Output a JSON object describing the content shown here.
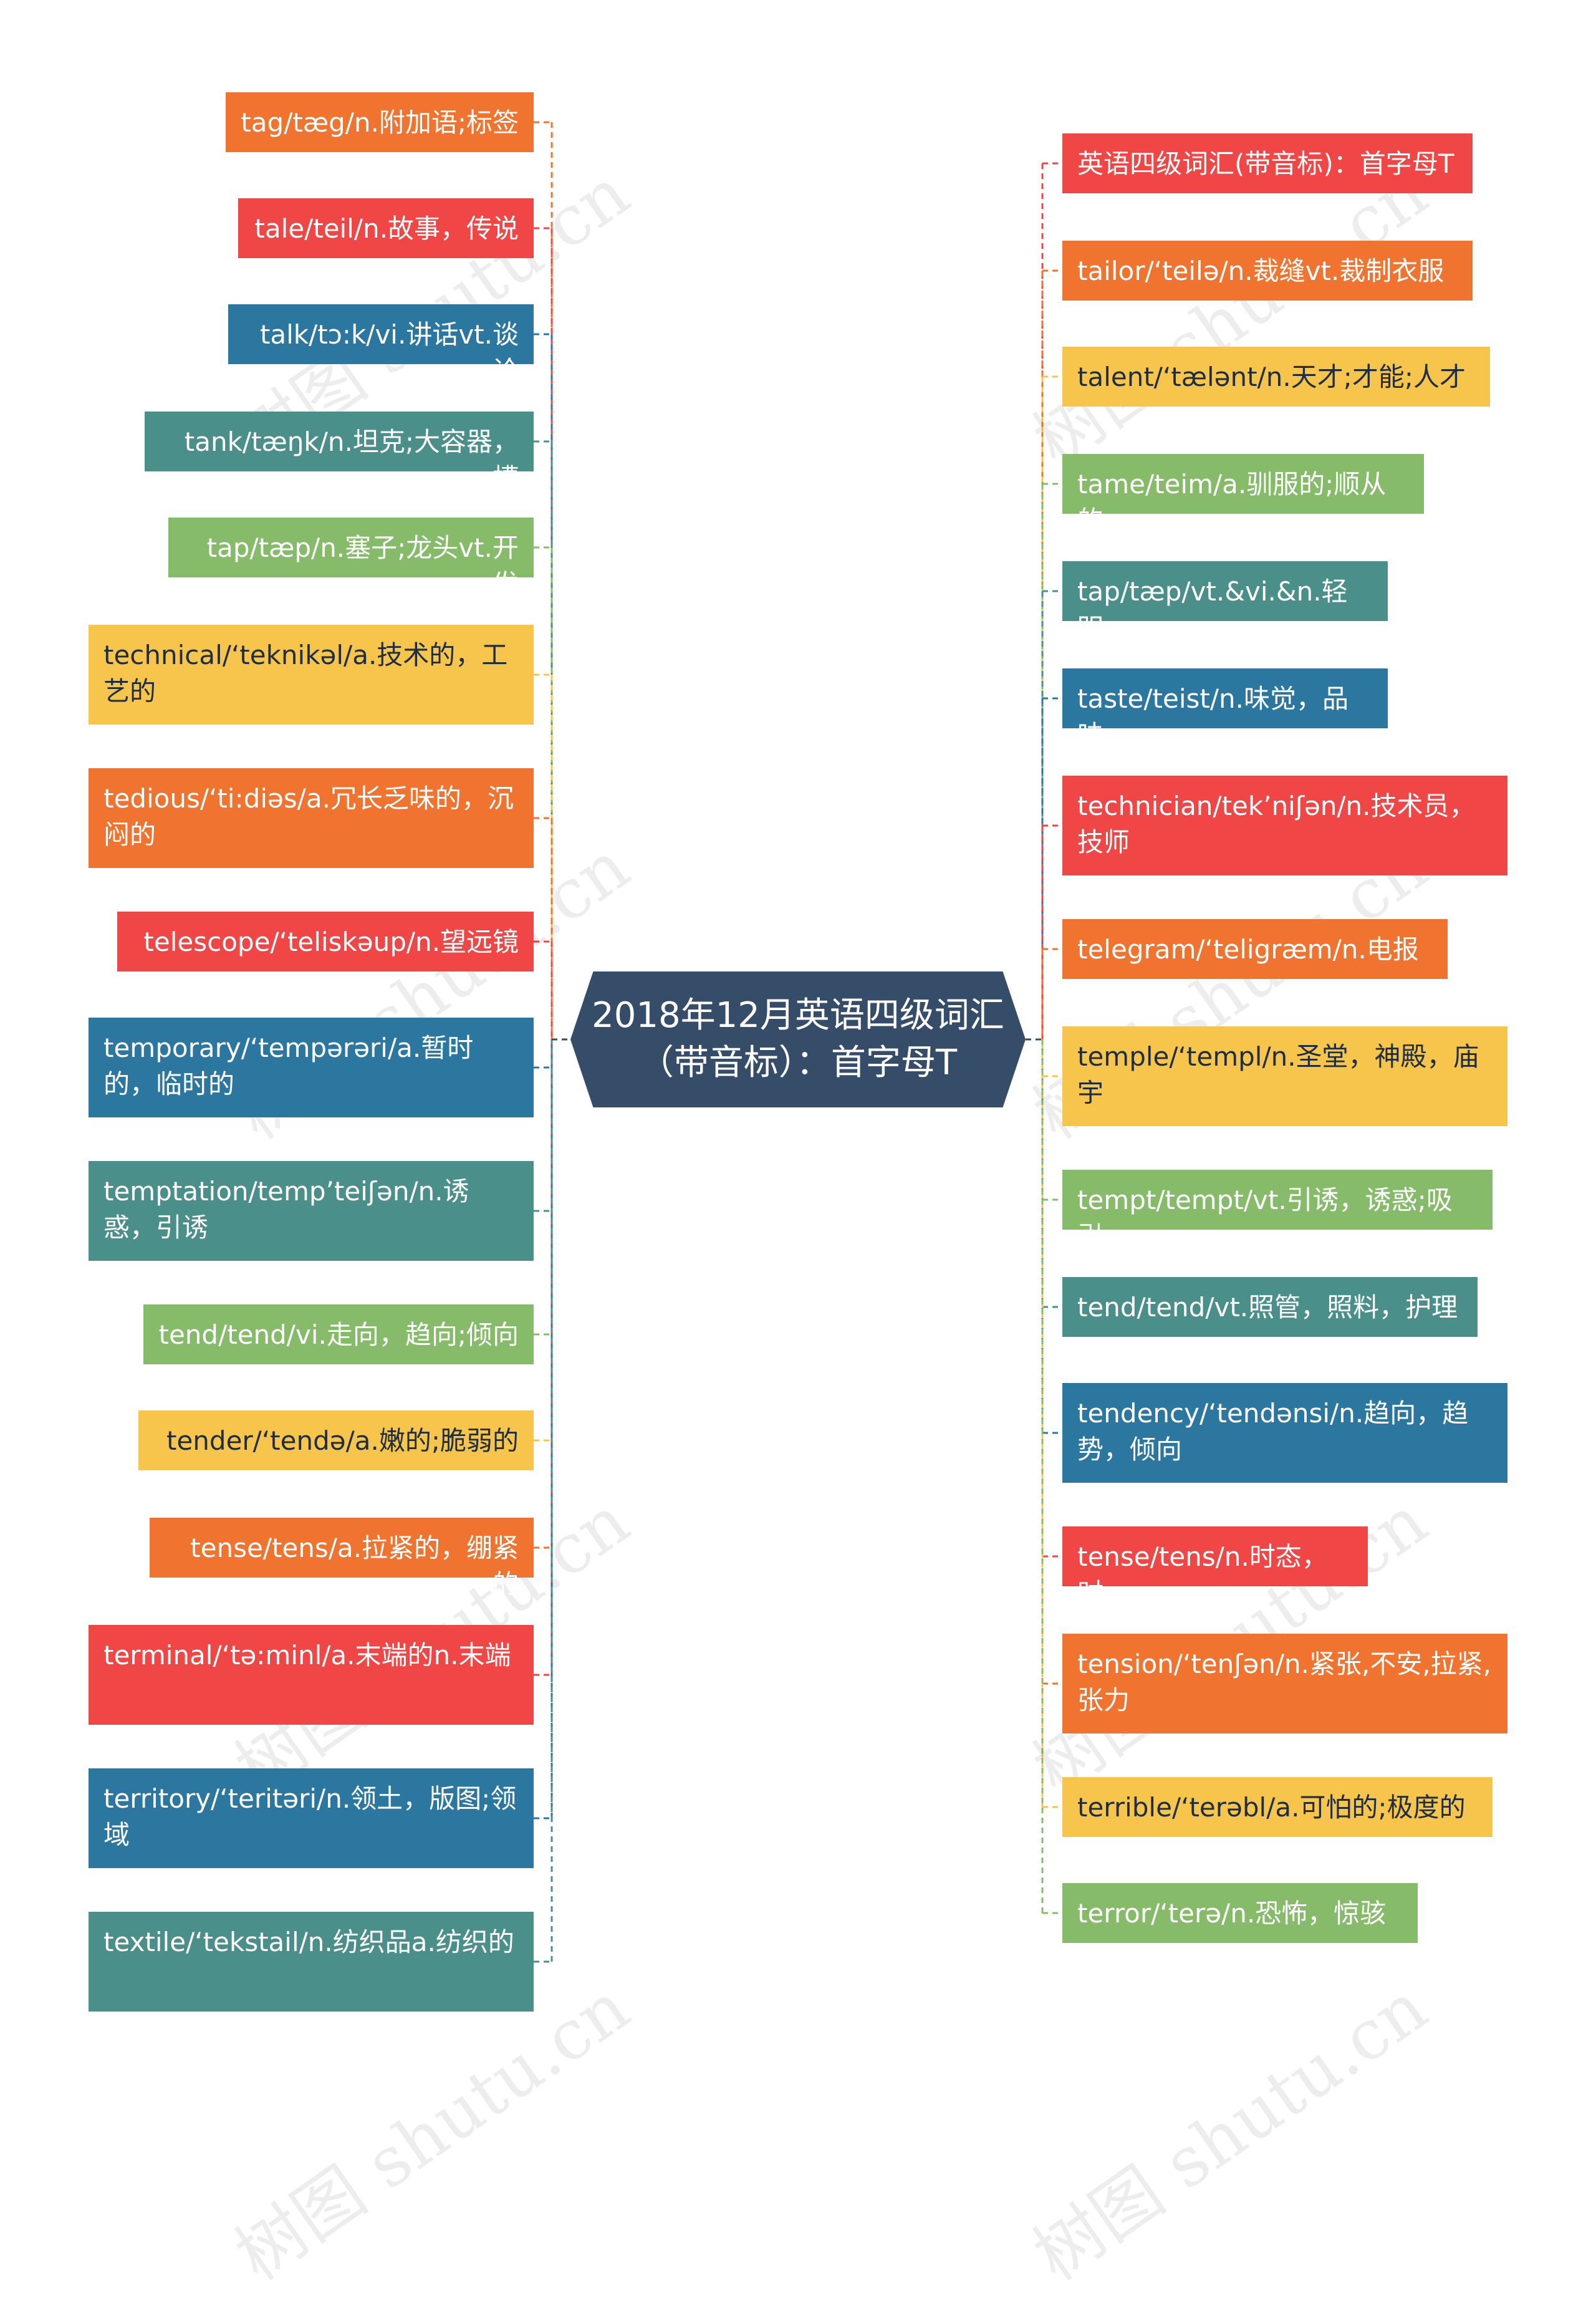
{
  "root": {
    "title_line1": "2018年12月英语四级词汇",
    "title_line2": "（带音标）：首字母T",
    "color": "#354d68"
  },
  "colors": {
    "orange": "#f07330",
    "red": "#f04646",
    "blue": "#2b77a0",
    "teal": "#4a8f89",
    "green": "#86bb6a",
    "yellow": "#f7c54b"
  },
  "left_nodes": [
    {
      "text": "tag/tæg/n.附加语;标签",
      "color": "orange"
    },
    {
      "text": "tale/teil/n.故事，传说",
      "color": "red"
    },
    {
      "text": "talk/tɔ:k/vi.讲话vt.谈论",
      "color": "blue"
    },
    {
      "text": "tank/tæŋk/n.坦克;大容器，槽",
      "color": "teal"
    },
    {
      "text": "tap/tæp/n.塞子;龙头vt.开发",
      "color": "green"
    },
    {
      "text": "technical/‘teknikəl/a.技术的，工艺的",
      "color": "yellow"
    },
    {
      "text": "tedious/‘ti:diəs/a.冗长乏味的，沉闷的",
      "color": "orange"
    },
    {
      "text": "telescope/‘teliskəup/n.望远镜",
      "color": "red"
    },
    {
      "text": "temporary/‘tempərəri/a.暂时的，临时的",
      "color": "blue"
    },
    {
      "text": "temptation/temp’teiʃən/n.诱惑，引诱",
      "color": "teal"
    },
    {
      "text": "tend/tend/vi.走向，趋向;倾向",
      "color": "green"
    },
    {
      "text": "tender/‘tendə/a.嫩的;脆弱的",
      "color": "yellow"
    },
    {
      "text": "tense/tens/a.拉紧的，绷紧的",
      "color": "orange"
    },
    {
      "text": "terminal/‘tə:minl/a.末端的n.末端",
      "color": "red"
    },
    {
      "text": "territory/‘teritəri/n.领土，版图;领域",
      "color": "blue"
    },
    {
      "text": "textile/‘tekstail/n.纺织品a.纺织的",
      "color": "teal"
    }
  ],
  "right_nodes": [
    {
      "text": "英语四级词汇(带音标)：首字母T",
      "color": "red"
    },
    {
      "text": "tailor/‘teilə/n.裁缝vt.裁制衣服",
      "color": "orange"
    },
    {
      "text": "talent/‘tælənt/n.天才;才能;人才",
      "color": "yellow"
    },
    {
      "text": "tame/teim/a.驯服的;顺从的",
      "color": "green"
    },
    {
      "text": "tap/tæp/vt.&vi.&n.轻叩",
      "color": "teal"
    },
    {
      "text": "taste/teist/n.味觉，品味",
      "color": "blue"
    },
    {
      "text": "technician/tek’niʃən/n.技术员，技师",
      "color": "red"
    },
    {
      "text": "telegram/‘teligræm/n.电报",
      "color": "orange"
    },
    {
      "text": "temple/‘templ/n.圣堂，神殿，庙宇",
      "color": "yellow"
    },
    {
      "text": "tempt/tempt/vt.引诱，诱惑;吸引",
      "color": "green"
    },
    {
      "text": "tend/tend/vt.照管，照料，护理",
      "color": "teal"
    },
    {
      "text": "tendency/‘tendənsi/n.趋向，趋势，倾向",
      "color": "blue"
    },
    {
      "text": "tense/tens/n.时态，时",
      "color": "red"
    },
    {
      "text": "tension/‘tenʃən/n.紧张,不安,拉紧,张力",
      "color": "orange"
    },
    {
      "text": "terrible/‘terəbl/a.可怕的;极度的",
      "color": "yellow"
    },
    {
      "text": "terror/‘terə/n.恐怖，惊骇",
      "color": "green"
    }
  ],
  "watermark": "树图 shutu.cn"
}
